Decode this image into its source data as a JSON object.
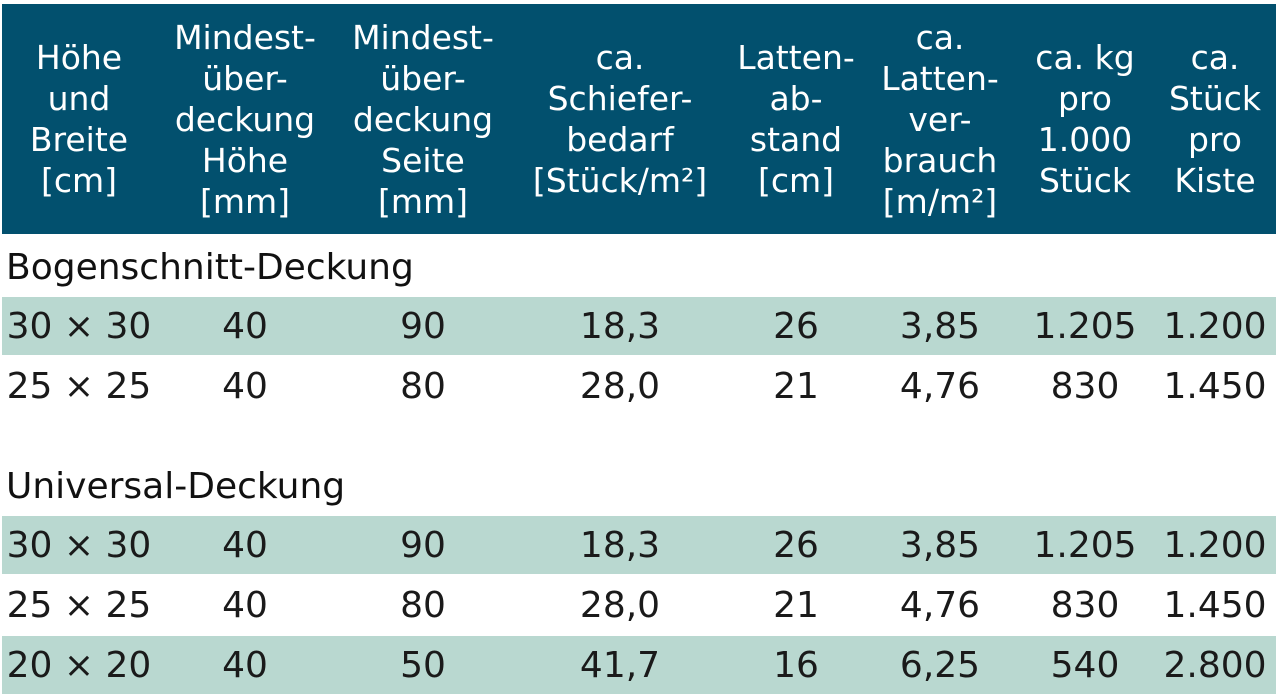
{
  "header": {
    "columns": [
      "Höhe\nund\nBreite\n[cm]",
      "Mindest-\nüber-\ndeckung\nHöhe\n[mm]",
      "Mindest-\nüber-\ndeckung\nSeite\n[mm]",
      "ca.\nSchiefer-\nbedarf\n[Stück/m²]",
      "Latten-\nab-\nstand\n[cm]",
      "ca.\nLatten-\nver-\nbrauch\n[m/m²]",
      "ca. kg\npro\n1.000\nStück",
      "ca.\nStück\npro\nKiste"
    ]
  },
  "sections": [
    {
      "title": "Bogenschnitt-Deckung",
      "rows": [
        [
          "30 × 30",
          "40",
          "90",
          "18,3",
          "26",
          "3,85",
          "1.205",
          "1.200"
        ],
        [
          "25 × 25",
          "40",
          "80",
          "28,0",
          "21",
          "4,76",
          "830",
          "1.450"
        ]
      ]
    },
    {
      "title": "Universal-Deckung",
      "rows": [
        [
          "30 × 30",
          "40",
          "90",
          "18,3",
          "26",
          "3,85",
          "1.205",
          "1.200"
        ],
        [
          "25 × 25",
          "40",
          "80",
          "28,0",
          "21",
          "4,76",
          "830",
          "1.450"
        ],
        [
          "20 × 20",
          "40",
          "50",
          "41,7",
          "16",
          "6,25",
          "540",
          "2.800"
        ]
      ]
    }
  ]
}
